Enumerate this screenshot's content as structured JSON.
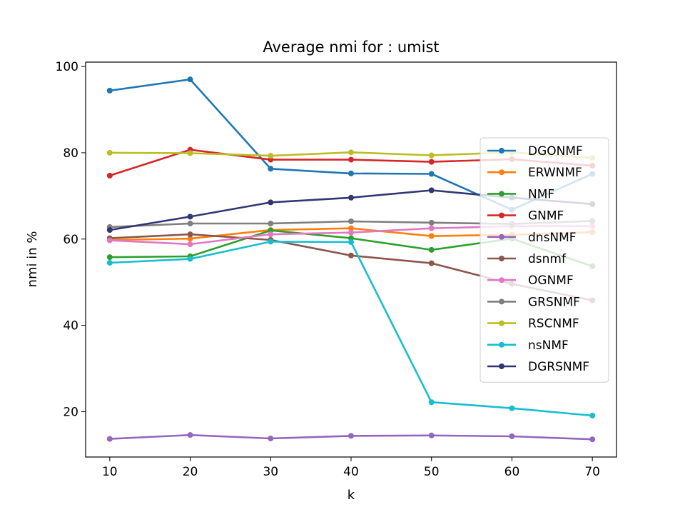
{
  "chart_data": {
    "type": "line",
    "title": "Average nmi for : umist",
    "xlabel": "k",
    "ylabel": "nmi in %",
    "x": [
      10,
      20,
      30,
      40,
      50,
      60,
      70
    ],
    "xlim": [
      7,
      73
    ],
    "ylim": [
      9.5,
      101
    ],
    "xticks": [
      "10",
      "20",
      "30",
      "40",
      "50",
      "60",
      "70"
    ],
    "yticks": [
      "20",
      "40",
      "60",
      "80",
      "100"
    ],
    "grid": false,
    "legend_position": "center-right",
    "series": [
      {
        "name": "DGONMF",
        "color": "#1f77b4",
        "values": [
          94.4,
          97.0,
          76.3,
          75.2,
          75.1,
          66.8,
          75.1
        ]
      },
      {
        "name": "ERWNMF",
        "color": "#ff7f0e",
        "values": [
          59.8,
          60.1,
          62.1,
          62.5,
          60.7,
          61.0,
          61.6
        ]
      },
      {
        "name": "NMF",
        "color": "#2ca02c",
        "values": [
          55.8,
          56.0,
          62.0,
          60.2,
          57.5,
          60.1,
          53.7
        ]
      },
      {
        "name": "GNMF",
        "color": "#d62728",
        "values": [
          74.7,
          80.7,
          78.4,
          78.4,
          77.9,
          78.5,
          77.0
        ]
      },
      {
        "name": "dnsNMF",
        "color": "#9467bd",
        "values": [
          13.7,
          14.6,
          13.8,
          14.4,
          14.5,
          14.3,
          13.6
        ]
      },
      {
        "name": "dsnmf",
        "color": "#8c564b",
        "values": [
          60.2,
          61.1,
          59.8,
          56.2,
          54.4,
          49.6,
          45.8
        ]
      },
      {
        "name": "OGNMF",
        "color": "#e377c2",
        "values": [
          59.7,
          58.8,
          61.1,
          61.5,
          62.5,
          63.0,
          63.0
        ]
      },
      {
        "name": "GRSNMF",
        "color": "#7f7f7f",
        "values": [
          62.8,
          63.6,
          63.6,
          64.1,
          63.8,
          63.5,
          64.2
        ]
      },
      {
        "name": "RSCNMF",
        "color": "#bcbd22",
        "values": [
          80.0,
          79.9,
          79.3,
          80.1,
          79.4,
          80.1,
          78.8
        ]
      },
      {
        "name": "nsNMF",
        "color": "#17becf",
        "values": [
          54.5,
          55.4,
          59.4,
          59.3,
          22.2,
          20.8,
          19.1
        ]
      },
      {
        "name": "DGRSNMF",
        "color": "#313773",
        "values": [
          62.1,
          65.2,
          68.5,
          69.6,
          71.3,
          69.6,
          68.1
        ]
      }
    ]
  }
}
